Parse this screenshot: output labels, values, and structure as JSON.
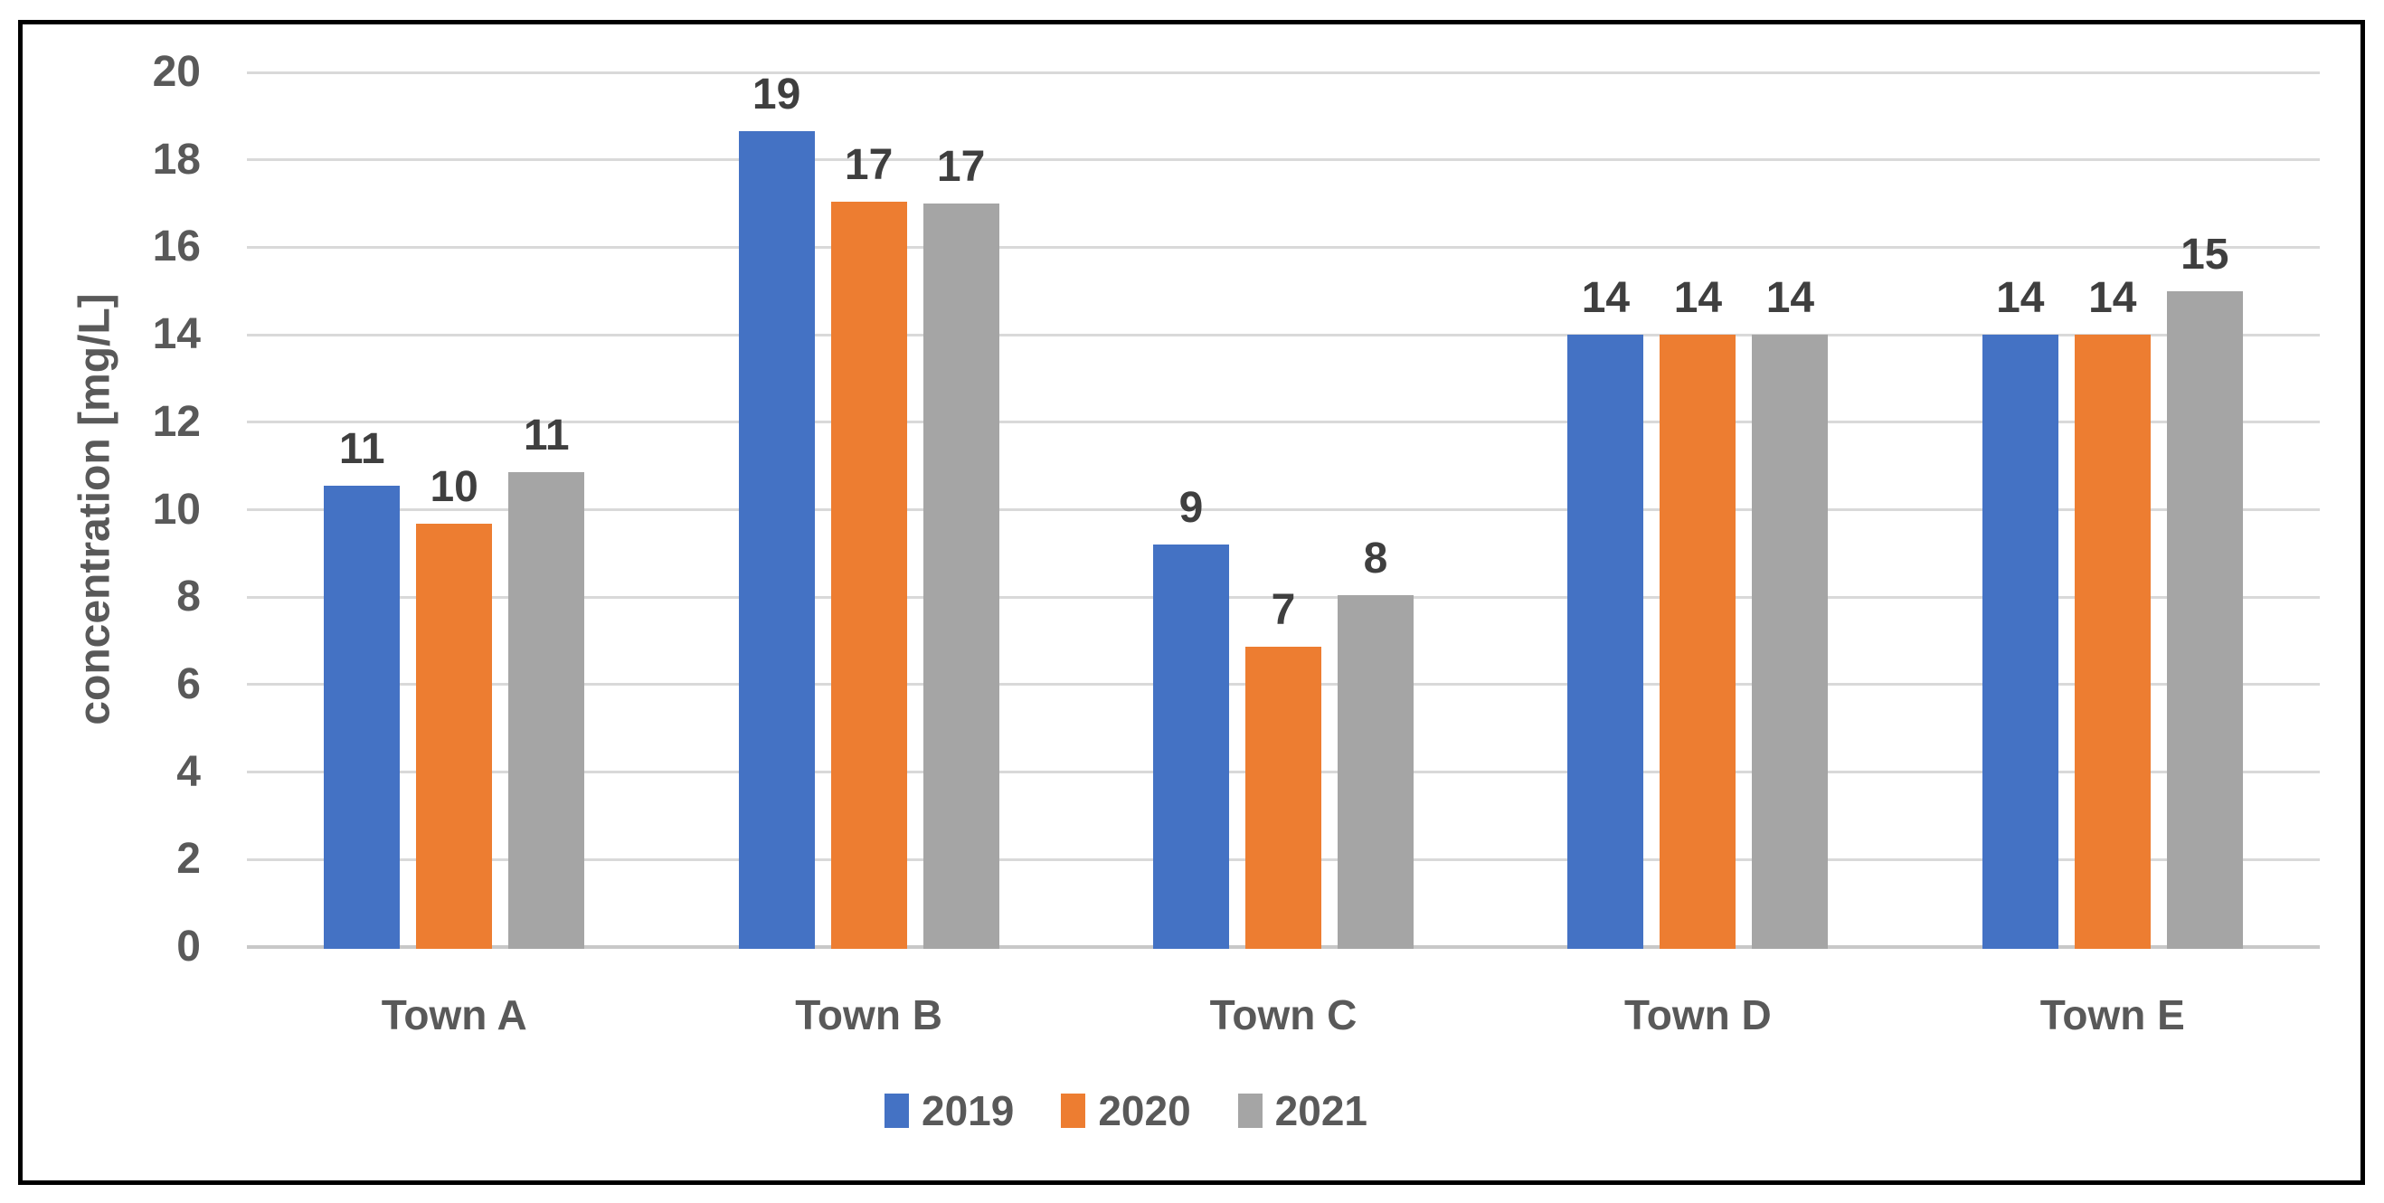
{
  "colors": {
    "gridline": "#D9D9D9",
    "axis_line": "#C8C8C8",
    "tick_text": "#595959",
    "data_label_text": "#3F3F3F",
    "border": "#000000",
    "background": "#FFFFFF"
  },
  "chart_data": {
    "type": "bar",
    "title": "",
    "xlabel": "",
    "ylabel": "concentration [mg/L]",
    "categories": [
      "Town A",
      "Town B",
      "Town C",
      "Town D",
      "Town E"
    ],
    "series": [
      {
        "name": "2019",
        "color": "#4472C4",
        "values": [
          10.55,
          18.65,
          9.2,
          14,
          14
        ],
        "labels": [
          "11",
          "19",
          "9",
          "14",
          "14"
        ]
      },
      {
        "name": "2020",
        "color": "#ED7D31",
        "values": [
          9.68,
          17.05,
          6.87,
          14,
          14
        ],
        "labels": [
          "10",
          "17",
          "7",
          "14",
          "14"
        ]
      },
      {
        "name": "2021",
        "color": "#A5A5A5",
        "values": [
          10.86,
          17.0,
          8.05,
          14,
          15
        ],
        "labels": [
          "11",
          "17",
          "8",
          "14",
          "15"
        ]
      }
    ],
    "ylim": [
      0,
      20
    ],
    "ytick_step": 2,
    "ytick_labels": [
      "0",
      "2",
      "4",
      "6",
      "8",
      "10",
      "12",
      "14",
      "16",
      "18",
      "20"
    ],
    "grid": true,
    "legend_position": "bottom"
  }
}
